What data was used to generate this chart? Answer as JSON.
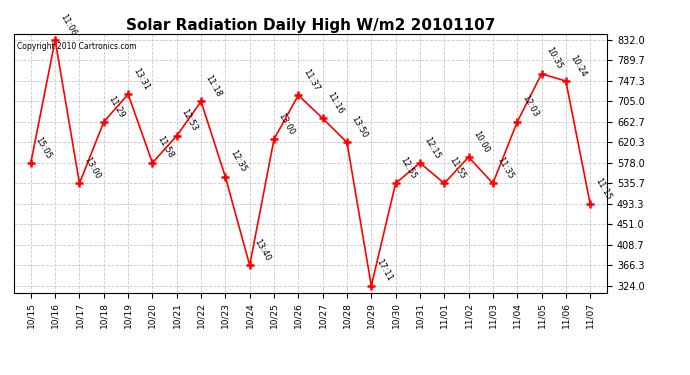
{
  "title": "Solar Radiation Daily High W/m2 20101107",
  "copyright": "Copyright 2010 Cartronics.com",
  "background_color": "#ffffff",
  "line_color": "#ff0000",
  "grid_color": "#c8c8c8",
  "xlabels": [
    "10/15",
    "10/16",
    "10/17",
    "10/18",
    "10/19",
    "10/20",
    "10/21",
    "10/22",
    "10/23",
    "10/24",
    "10/25",
    "10/26",
    "10/27",
    "10/28",
    "10/29",
    "10/30",
    "10/31",
    "11/01",
    "11/02",
    "11/03",
    "11/04",
    "11/05",
    "11/06",
    "11/07"
  ],
  "yvalues": [
    578.0,
    832.0,
    535.7,
    662.7,
    720.0,
    578.0,
    634.0,
    705.0,
    549.0,
    366.3,
    627.0,
    718.0,
    670.0,
    620.3,
    324.0,
    535.7,
    578.0,
    535.7,
    590.0,
    535.7,
    662.7,
    762.0,
    747.3,
    493.3
  ],
  "time_labels": [
    "15:05",
    "11:06",
    "13:00",
    "11:29",
    "13:31",
    "11:58",
    "12:53",
    "11:18",
    "12:35",
    "13:40",
    "13:00",
    "11:37",
    "11:16",
    "13:50",
    "17:11",
    "12:55",
    "12:15",
    "11:55",
    "10:00",
    "11:35",
    "12:03",
    "10:35",
    "10:24",
    "11:15"
  ],
  "yticks": [
    324.0,
    366.3,
    408.7,
    451.0,
    493.3,
    535.7,
    578.0,
    620.3,
    662.7,
    705.0,
    747.3,
    789.7,
    832.0
  ],
  "ylim": [
    310,
    845
  ],
  "title_fontsize": 11,
  "tick_fontsize": 6.5,
  "annot_fontsize": 6,
  "annot_rotation": -60,
  "figsize": [
    6.9,
    3.75
  ],
  "dpi": 100
}
